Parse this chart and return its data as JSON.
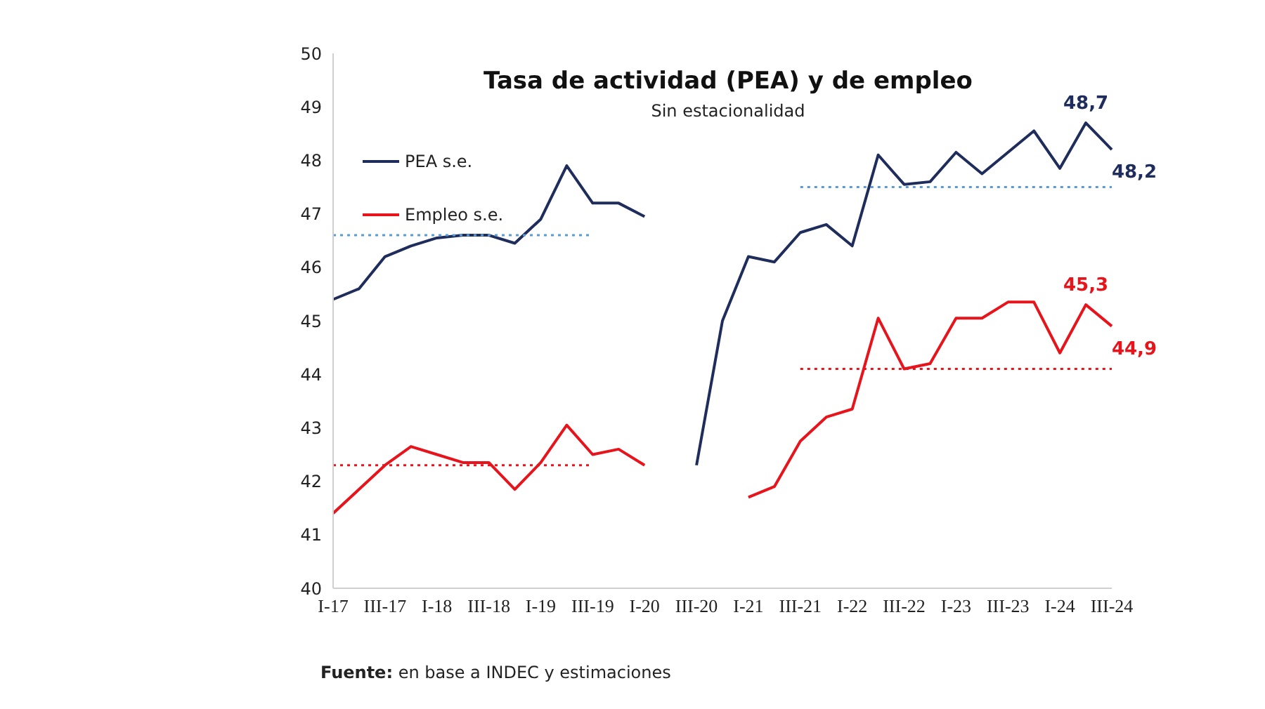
{
  "chart_data": {
    "type": "line",
    "title": "Tasa de actividad (PEA) y de empleo",
    "subtitle": "Sin estacionalidad",
    "categories": [
      "I-17",
      null,
      "III-17",
      null,
      "I-18",
      null,
      "III-18",
      null,
      "I-19",
      null,
      "III-19",
      null,
      "I-20",
      null,
      "III-20",
      null,
      "I-21",
      null,
      "III-21",
      null,
      "I-22",
      null,
      "III-22",
      null,
      "I-23",
      null,
      "III-23",
      null,
      "I-24",
      null,
      "III-24"
    ],
    "series": [
      {
        "name": "PEA s.e.",
        "color": "#1f2d5c",
        "values": [
          45.4,
          45.6,
          46.2,
          46.4,
          46.55,
          46.6,
          46.6,
          46.45,
          46.9,
          47.9,
          47.2,
          47.2,
          46.95,
          null,
          42.3,
          45.0,
          46.2,
          46.1,
          46.65,
          46.8,
          46.4,
          48.1,
          47.55,
          47.6,
          48.15,
          47.75,
          48.15,
          48.55,
          47.85,
          48.7,
          48.2
        ],
        "value_labels": [
          null,
          null,
          null,
          null,
          null,
          null,
          null,
          null,
          null,
          null,
          null,
          null,
          null,
          null,
          null,
          null,
          null,
          null,
          null,
          null,
          null,
          null,
          null,
          null,
          null,
          null,
          null,
          null,
          null,
          "48,7",
          "48,2"
        ]
      },
      {
        "name": "Empleo s.e.",
        "color": "#e8141c",
        "values": [
          41.4,
          41.85,
          42.3,
          42.65,
          42.5,
          42.35,
          42.35,
          41.85,
          42.35,
          43.05,
          42.5,
          42.6,
          42.3,
          null,
          null,
          null,
          41.7,
          41.9,
          42.75,
          43.2,
          43.35,
          45.05,
          44.1,
          44.2,
          45.05,
          45.05,
          45.35,
          45.35,
          44.4,
          45.3,
          44.9
        ],
        "value_labels": [
          null,
          null,
          null,
          null,
          null,
          null,
          null,
          null,
          null,
          null,
          null,
          null,
          null,
          null,
          null,
          null,
          null,
          null,
          null,
          null,
          null,
          null,
          null,
          null,
          null,
          null,
          null,
          null,
          null,
          "45,3",
          "44,9"
        ]
      },
      {
        "type": "line",
        "x": [
          "I-17",
          "III-19"
        ],
        "values": [
          46.6,
          46.6
        ],
        "color": "#5b9bd5",
        "line_style": "dotted"
      },
      {
        "type": "line",
        "x": [
          "III-21",
          "III-24"
        ],
        "values": [
          47.5,
          47.5
        ],
        "color": "#5b9bd5",
        "line_style": "dotted"
      },
      {
        "type": "line",
        "x": [
          "I-17",
          "III-19"
        ],
        "values": [
          42.3,
          42.3
        ],
        "color": "#e8141c",
        "line_style": "dotted"
      },
      {
        "type": "line",
        "x": [
          "III-21",
          "III-24"
        ],
        "values": [
          44.1,
          44.1
        ],
        "color": "#e8141c",
        "line_style": "dotted"
      }
    ],
    "ylim": [
      40,
      50
    ],
    "yticks": [
      40,
      41,
      42,
      43,
      44,
      45,
      46,
      47,
      48,
      49,
      50
    ],
    "grid": false,
    "legend": "top left",
    "marker": "none",
    "line_style": "solid",
    "annotations": [
      "Fuente: en base a INDEC y estimaciones"
    ]
  }
}
